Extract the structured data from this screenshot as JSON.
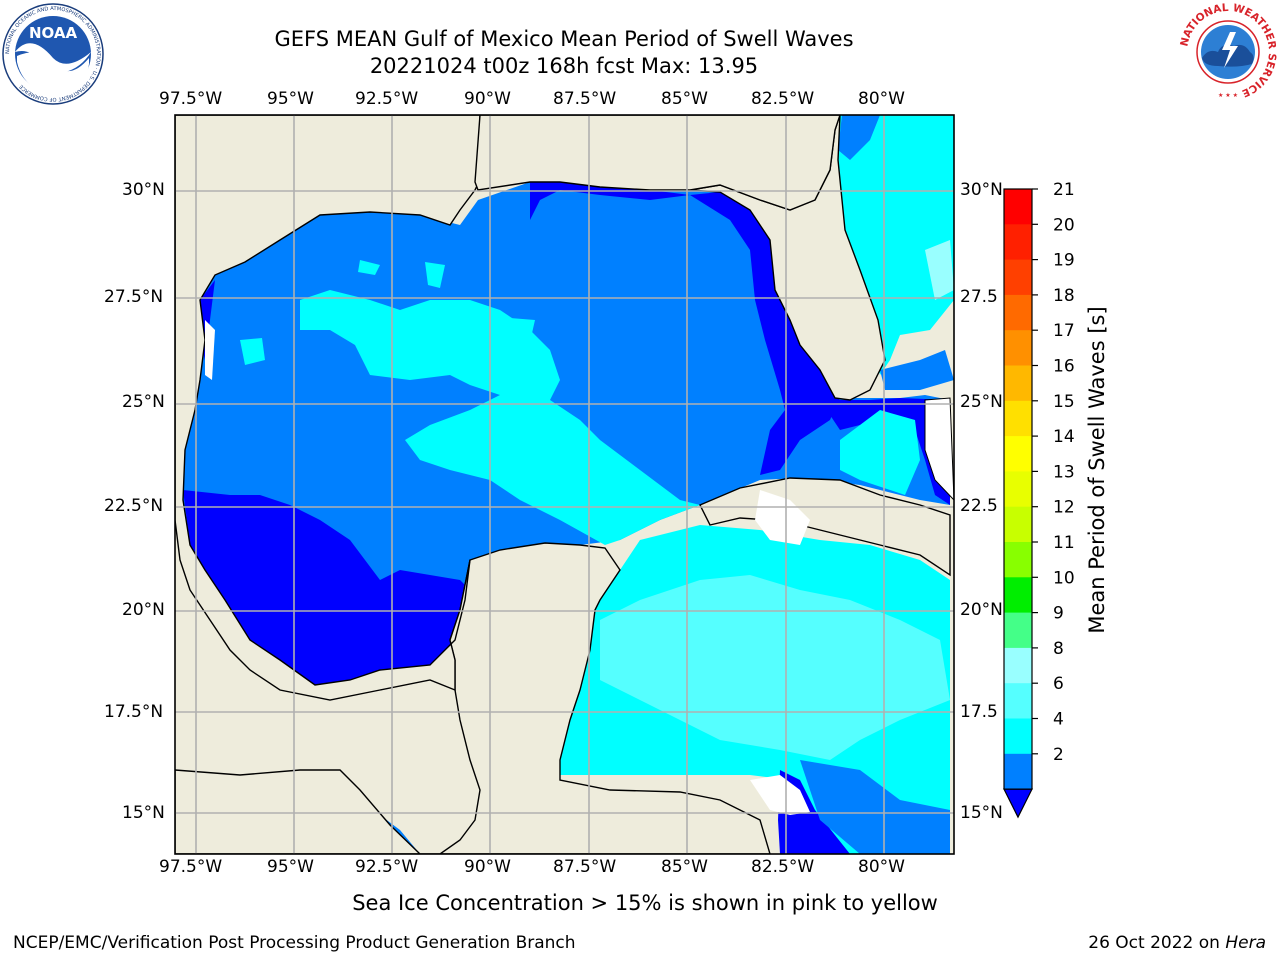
{
  "title": {
    "line1": "GEFS MEAN Gulf of Mexico Mean Period of Swell Waves",
    "line2": "20221024 t00z 168h fcst   Max: 13.95"
  },
  "map": {
    "lon_labels": [
      "97.5°W",
      "95°W",
      "92.5°W",
      "90°W",
      "87.5°W",
      "85°W",
      "82.5°W",
      "80°W"
    ],
    "lat_labels_left": [
      "30°N",
      "27.5°N",
      "25°N",
      "22.5°N",
      "20°N",
      "17.5°N",
      "15°N"
    ],
    "lat_labels_right": [
      "30°N",
      "27.5",
      "25°N",
      "22.5",
      "20°N",
      "17.5",
      "15°N"
    ],
    "colors": {
      "land": "#eeecdc",
      "deep_blue": "#0000ff",
      "blue": "#0080ff",
      "cyan": "#00ffff",
      "light_cyan": "#55ffff",
      "pale_cyan": "#99ffff",
      "green": "#44ff88",
      "lime": "#99ff00",
      "yellow_green": "#ccff00",
      "grid": "#b0b0b0"
    }
  },
  "colorbar": {
    "label": "Mean Period of Swell Waves [s]",
    "ticks": [
      "21",
      "20",
      "19",
      "18",
      "17",
      "16",
      "15",
      "14",
      "13",
      "12",
      "11",
      "10",
      "9",
      "8",
      "6",
      "4",
      "2"
    ],
    "colors": [
      "#ff0000",
      "#ff2000",
      "#ff4000",
      "#ff6a00",
      "#ff9000",
      "#ffb800",
      "#ffe000",
      "#ffff00",
      "#e8ff00",
      "#c8ff00",
      "#88ff00",
      "#00ee00",
      "#44ff88",
      "#99ffff",
      "#55ffff",
      "#00ffff",
      "#0080ff"
    ],
    "under_color": "#0000ff"
  },
  "subtitle": "Sea Ice Concentration > 15% is shown in pink to yellow",
  "footer": {
    "left": "NCEP/EMC/Verification Post Processing Product Generation Branch",
    "right_date": "26 Oct 2022 on ",
    "right_machine": "Hera"
  },
  "logos": {
    "noaa_text": "NOAA",
    "noaa_ring": "NATIONAL OCEANIC AND ATMOSPHERIC ADMINISTRATION · U.S. DEPARTMENT OF COMMERCE",
    "nws_ring": "NATIONAL WEATHER SERVICE"
  }
}
